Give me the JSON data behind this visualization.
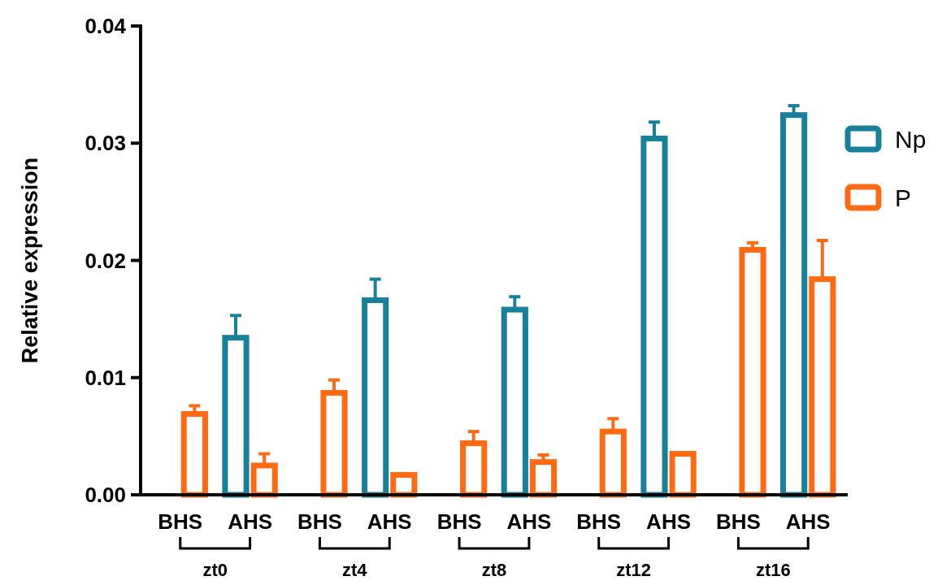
{
  "chart_data": {
    "type": "bar",
    "ylabel": "Relative expression",
    "categories": [
      "BHS",
      "AHS",
      "BHS",
      "AHS",
      "BHS",
      "AHS",
      "BHS",
      "AHS",
      "BHS",
      "AHS"
    ],
    "series": [
      {
        "name": "Np",
        "color": "#17809b",
        "values": [
          0,
          0.0134,
          0,
          0.0166,
          0,
          0.0158,
          0,
          0.0304,
          0,
          0.0324
        ],
        "errors": [
          null,
          [
            0.0134,
            0.0153
          ],
          null,
          [
            0.0166,
            0.0184
          ],
          null,
          [
            0.0158,
            0.0169
          ],
          null,
          [
            0.0304,
            0.0318
          ],
          null,
          [
            0.0324,
            0.0332
          ]
        ]
      },
      {
        "name": "P",
        "color": "#ff6a13",
        "values": [
          0.0069,
          0.0025,
          0.0087,
          0.0017,
          0.0044,
          0.0028,
          0.0054,
          0.0035,
          0.0209,
          0.0184
        ],
        "errors": [
          [
            0.0069,
            0.0076
          ],
          [
            0.0025,
            0.0035
          ],
          [
            0.0087,
            0.0098
          ],
          null,
          [
            0.0044,
            0.0054
          ],
          [
            0.0028,
            0.0034
          ],
          [
            0.0054,
            0.0065
          ],
          null,
          [
            0.0209,
            0.0215
          ],
          [
            0.0184,
            0.0217
          ]
        ]
      }
    ],
    "ylim": [
      0,
      0.04
    ],
    "yticks": [
      {
        "value": 0,
        "label": "0.00"
      },
      {
        "value": 0.01,
        "label": "0.01"
      },
      {
        "value": 0.02,
        "label": "0.02"
      },
      {
        "value": 0.03,
        "label": "0.03"
      },
      {
        "value": 0.04,
        "label": "0.04"
      }
    ],
    "annotations": [
      "zt0",
      "zt4",
      "zt8",
      "zt12",
      "zt16"
    ],
    "legend": "top right",
    "grid": false
  }
}
